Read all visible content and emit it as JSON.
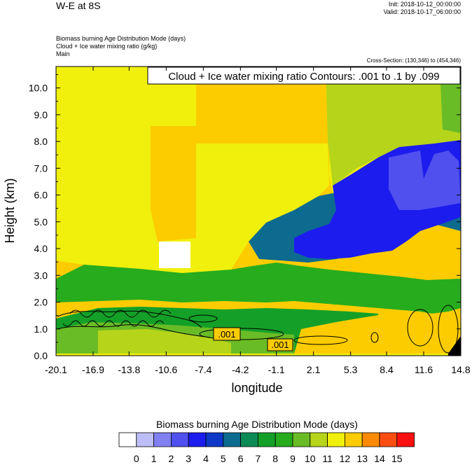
{
  "header": {
    "title": "W-E at 8S",
    "init": "Init: 2018-10-12_00:00:00",
    "valid": "Valid: 2018-10-17_06:00:00",
    "field1": "Biomass burning Age Distribution Mode   (days)",
    "field2": "Cloud + Ice water mixing ratio   (g/kg)",
    "field3": "Main",
    "cross_section": "Cross-Section: (130,346) to (454,346)"
  },
  "chart_data": {
    "type": "heatmap",
    "xlabel": "longitude",
    "ylabel": "Height (km)",
    "x_ticks": [
      "-20.1",
      "-16.9",
      "-13.8",
      "-10.6",
      "-7.4",
      "-4.2",
      "-1.1",
      "2.1",
      "5.3",
      "8.4",
      "11.6",
      "14.8"
    ],
    "y_ticks": [
      "0.0",
      "1.0",
      "2.0",
      "3.0",
      "4.0",
      "5.0",
      "6.0",
      "7.0",
      "8.0",
      "9.0",
      "10.0"
    ],
    "xlim": [
      -20.1,
      14.8
    ],
    "ylim": [
      0,
      10.8
    ],
    "contour_title": "Cloud + Ice water mixing ratio Contours: .001 to .1 by .099",
    "contour_labels": [
      ".001",
      ".001"
    ],
    "colorbar": {
      "title": "Biomass burning Age Distribution Mode  (days)",
      "labels": [
        "0",
        "1",
        "2",
        "3",
        "4",
        "5",
        "6",
        "7",
        "8",
        "9",
        "10",
        "11",
        "12",
        "13",
        "14",
        "15"
      ],
      "colors": [
        "#ffffff",
        "#bdbdf7",
        "#8080f2",
        "#5050ef",
        "#1c1cee",
        "#0e39c8",
        "#0d6b8f",
        "#0c8a55",
        "#14a028",
        "#27ac1e",
        "#6abc26",
        "#b6d41a",
        "#f0f00c",
        "#fccc00",
        "#fc8a06",
        "#fb4d11",
        "#fa1010"
      ]
    }
  }
}
